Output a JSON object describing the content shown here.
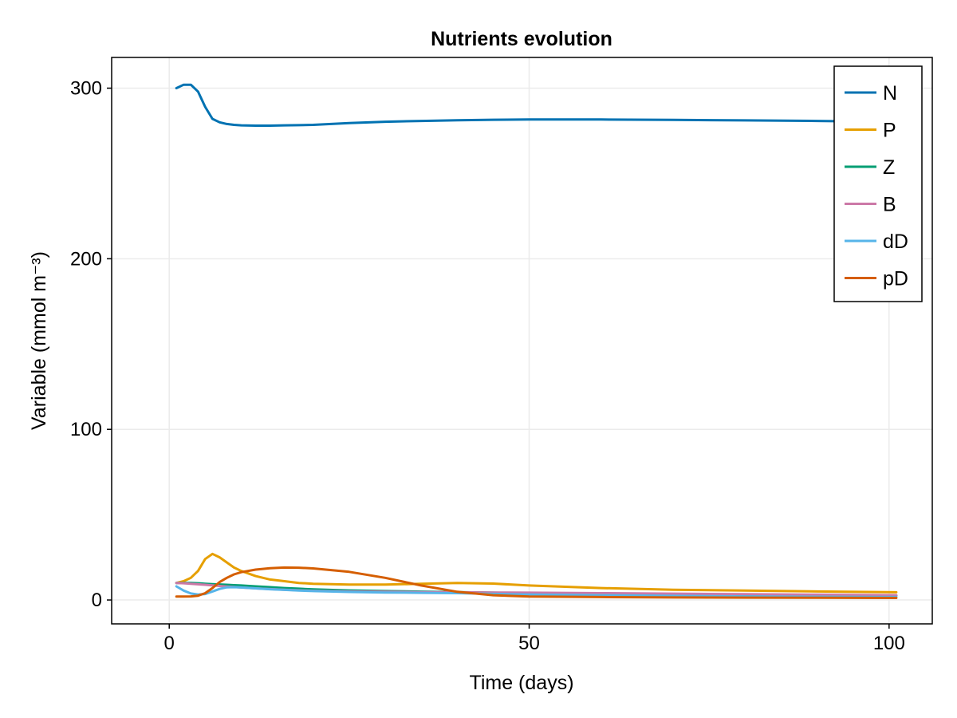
{
  "chart_data": {
    "type": "line",
    "title": "Nutrients evolution",
    "xlabel": "Time (days)",
    "ylabel": "Variable (mmol m⁻³)",
    "xlim": [
      -8,
      106
    ],
    "ylim": [
      -14,
      318
    ],
    "xticks": [
      0,
      50,
      100
    ],
    "yticks": [
      0,
      100,
      200,
      300
    ],
    "grid": true,
    "legend_position": "top-right",
    "x": [
      1,
      2,
      3,
      4,
      5,
      6,
      7,
      8,
      9,
      10,
      12,
      14,
      16,
      18,
      20,
      25,
      30,
      35,
      40,
      45,
      50,
      60,
      70,
      80,
      90,
      101
    ],
    "series": [
      {
        "name": "N",
        "color": "#0072b2",
        "values": [
          300,
          302,
          302,
          298,
          289,
          282,
          280,
          279,
          278.5,
          278.2,
          278,
          278,
          278.2,
          278.3,
          278.5,
          279.5,
          280.3,
          280.8,
          281.2,
          281.5,
          281.6,
          281.6,
          281.4,
          281.1,
          280.8,
          280.2
        ]
      },
      {
        "name": "P",
        "color": "#e69f00",
        "values": [
          10,
          11,
          13,
          17,
          24,
          27,
          25,
          22,
          19,
          17,
          14,
          12,
          11,
          10,
          9.5,
          9,
          9,
          9.5,
          10,
          9.6,
          8.5,
          7,
          6,
          5.5,
          5,
          4.5
        ]
      },
      {
        "name": "Z",
        "color": "#009e73",
        "values": [
          10,
          10,
          10,
          9.8,
          9.5,
          9.3,
          9.1,
          8.9,
          8.7,
          8.5,
          8,
          7.5,
          7,
          6.6,
          6.2,
          5.6,
          5.2,
          4.9,
          4.6,
          4.3,
          4,
          3.6,
          3.3,
          3,
          2.8,
          2.6
        ]
      },
      {
        "name": "B",
        "color": "#cc79a7",
        "values": [
          10,
          9.8,
          9.5,
          9.2,
          8.9,
          8.6,
          8.2,
          7.9,
          7.6,
          7.3,
          6.8,
          6.4,
          6,
          5.7,
          5.4,
          5,
          4.8,
          4.6,
          4.5,
          4.4,
          4.3,
          4,
          3.7,
          3.4,
          3.1,
          2.8
        ]
      },
      {
        "name": "dD",
        "color": "#56b4e9",
        "values": [
          8,
          5.5,
          3.8,
          3.2,
          3.5,
          5,
          6.5,
          7.4,
          7.5,
          7.3,
          6.8,
          6.3,
          5.9,
          5.5,
          5.2,
          4.7,
          4.4,
          4.2,
          4,
          3.6,
          3.2,
          2.8,
          2.4,
          2.1,
          1.9,
          1.7
        ]
      },
      {
        "name": "pD",
        "color": "#d55e00",
        "values": [
          2,
          2,
          2.1,
          2.5,
          4,
          7,
          10.5,
          13,
          15,
          16.3,
          17.8,
          18.6,
          19,
          18.9,
          18.5,
          16.5,
          13,
          8.5,
          4.8,
          2.8,
          2,
          1.7,
          1.5,
          1.4,
          1.3,
          1.2
        ]
      }
    ]
  }
}
